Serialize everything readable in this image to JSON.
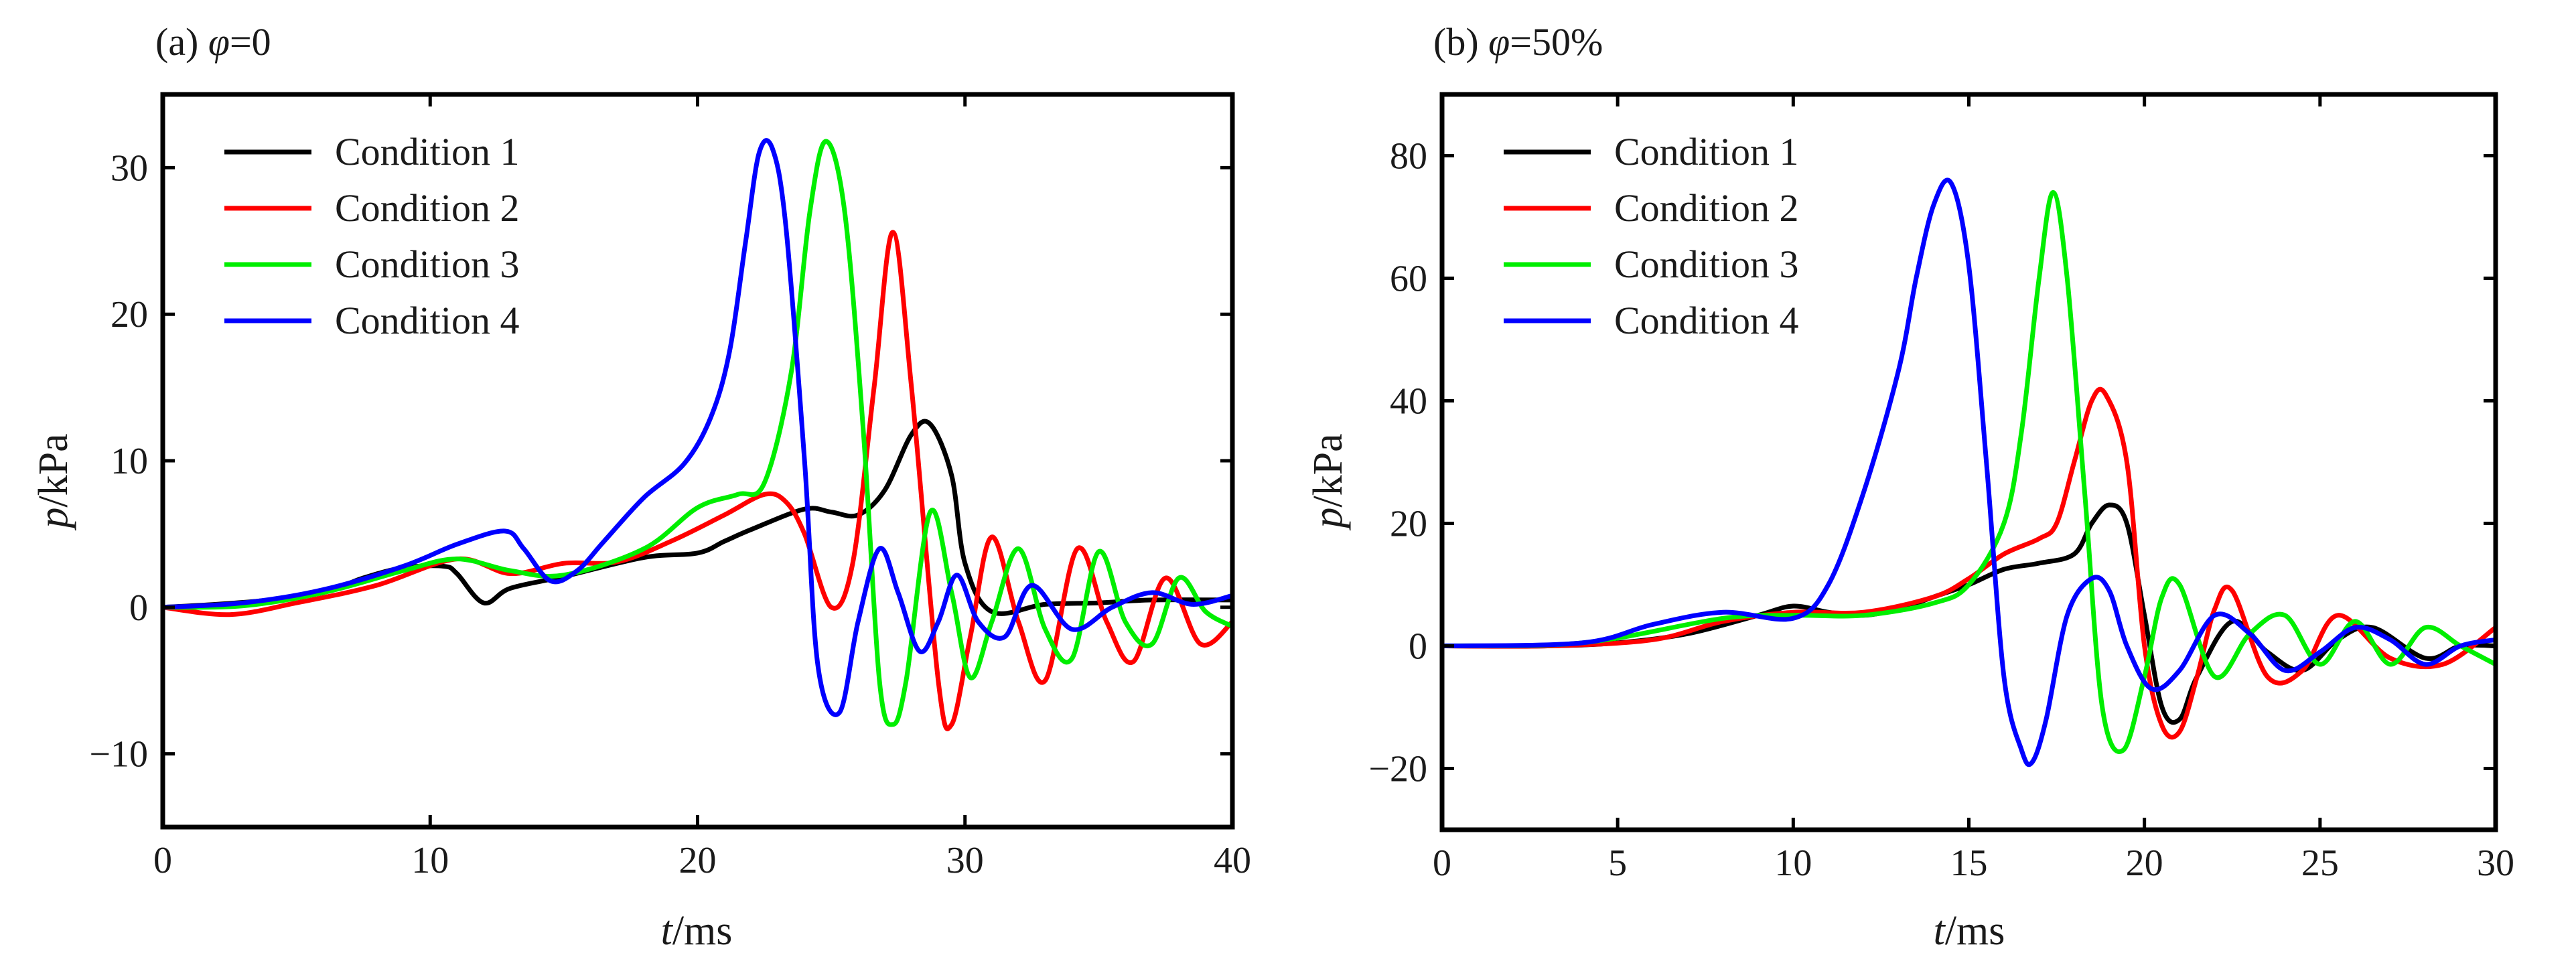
{
  "figure": {
    "panels": [
      {
        "title_prefix": "(a) ",
        "title_symbol": "φ",
        "title_suffix": "=0"
      },
      {
        "title_prefix": "(b) ",
        "title_symbol": "φ",
        "title_suffix": "=50%"
      }
    ]
  },
  "chart_data": [
    {
      "type": "line",
      "title": "(a) φ=0",
      "xlabel_var": "t",
      "xlabel_unit": "/ms",
      "ylabel_var": "p",
      "ylabel_unit": "/kPa",
      "xlim": [
        0,
        40
      ],
      "ylim": [
        -15,
        35
      ],
      "xticks": [
        0,
        10,
        20,
        30,
        40
      ],
      "yticks": [
        -10,
        0,
        10,
        20,
        30
      ],
      "ytick_labels": [
        "−10",
        "0",
        "10",
        "20",
        "30"
      ],
      "grid": false,
      "legend": "top-left",
      "series": [
        {
          "name": "Condition 1",
          "color": "#000000",
          "x": [
            0,
            2,
            4,
            6,
            7.5,
            9,
            10.5,
            11,
            12,
            13,
            15,
            18,
            20,
            21,
            22,
            24,
            25,
            26,
            27,
            28,
            28.7,
            29.5,
            30,
            31,
            33,
            35,
            37,
            40
          ],
          "y": [
            0,
            0.2,
            0.5,
            1,
            2,
            2.7,
            2.8,
            2.3,
            0.3,
            1.3,
            2.1,
            3.4,
            3.7,
            4.5,
            5.3,
            6.7,
            6.5,
            6.3,
            8,
            11.8,
            12.5,
            9,
            3,
            -0.3,
            0.2,
            0.3,
            0.5,
            0.5
          ]
        },
        {
          "name": "Condition 2",
          "color": "#ff0000",
          "x": [
            0,
            2.5,
            5,
            8,
            11,
            13,
            15,
            17,
            19,
            21,
            22.5,
            23.3,
            24,
            25,
            25.8,
            26.6,
            27.3,
            28,
            29,
            29.5,
            30.2,
            31,
            32,
            33,
            34.2,
            35.3,
            36.3,
            37.5,
            38.8,
            40
          ],
          "y": [
            0,
            -0.5,
            0.3,
            1.5,
            3.3,
            2.3,
            3,
            3.1,
            4.5,
            6.3,
            7.7,
            7.2,
            5,
            0,
            3,
            15,
            25.6,
            15,
            -5,
            -8,
            -2,
            4.8,
            -1,
            -5,
            4,
            -1,
            -3.7,
            2,
            -2.5,
            -1
          ]
        },
        {
          "name": "Condition 3",
          "color": "#00ee00",
          "x": [
            0,
            3,
            6,
            9,
            11,
            13,
            15,
            18,
            20,
            21.5,
            22.5,
            23.5,
            24.2,
            24.8,
            25.5,
            26.2,
            26.8,
            27.3,
            27.8,
            28.7,
            29.5,
            30.2,
            31,
            32,
            33,
            34,
            35,
            36,
            37,
            38,
            39,
            40
          ],
          "y": [
            0,
            0.1,
            1,
            2.5,
            3.3,
            2.5,
            2.2,
            4,
            6.8,
            7.7,
            8.5,
            16,
            27,
            31.8,
            27,
            12,
            -5,
            -8,
            -5,
            6.5,
            1,
            -4.8,
            -1,
            4,
            -1.5,
            -3.5,
            3.8,
            -1,
            -2.5,
            2,
            -0.3,
            -1.3
          ]
        },
        {
          "name": "Condition 4",
          "color": "#0000ff",
          "x": [
            0,
            3,
            6,
            9,
            11,
            12.8,
            13.5,
            14.5,
            15.5,
            16.5,
            18,
            19.5,
            20.5,
            21.2,
            21.8,
            22.3,
            22.8,
            23.3,
            24,
            24.5,
            25.3,
            26,
            26.8,
            27.5,
            28.3,
            29,
            29.7,
            30.5,
            31.5,
            32.5,
            34,
            35.5,
            37,
            38.5,
            40
          ],
          "y": [
            0,
            0.3,
            1.2,
            2.8,
            4.3,
            5.2,
            4,
            1.8,
            2.5,
            4.5,
            7.5,
            9.8,
            13,
            17.5,
            25,
            31,
            31.3,
            26,
            10,
            -4,
            -7.2,
            -1,
            4,
            1,
            -3,
            -1,
            2.2,
            -1,
            -2,
            1.5,
            -1.5,
            0,
            1,
            0.2,
            0.8
          ]
        }
      ]
    },
    {
      "type": "line",
      "title": "(b) φ=50%",
      "xlabel_var": "t",
      "xlabel_unit": "/ms",
      "ylabel_var": "p",
      "ylabel_unit": "/kPa",
      "xlim": [
        0,
        30
      ],
      "ylim": [
        -30,
        90
      ],
      "xticks": [
        0,
        5,
        10,
        15,
        20,
        25,
        30
      ],
      "yticks": [
        -20,
        0,
        20,
        40,
        60,
        80
      ],
      "ytick_labels": [
        "−20",
        "0",
        "20",
        "40",
        "60",
        "80"
      ],
      "grid": false,
      "legend": "top-left",
      "series": [
        {
          "name": "Condition 1",
          "color": "#000000",
          "x": [
            0,
            3,
            5,
            7,
            9,
            10,
            11,
            12,
            13,
            14,
            15,
            16,
            17,
            18,
            18.5,
            19,
            19.5,
            20,
            20.5,
            21,
            21.5,
            22.5,
            23.5,
            24.5,
            25.5,
            26.5,
            28,
            29,
            30
          ],
          "y": [
            0,
            0,
            0.5,
            2,
            5,
            6.5,
            5.5,
            5,
            6,
            8,
            10,
            12.5,
            13.5,
            15,
            20,
            23,
            20,
            5,
            -10,
            -12,
            -5,
            4,
            -1,
            -4,
            1,
            3,
            -2,
            0,
            0
          ]
        },
        {
          "name": "Condition 2",
          "color": "#ff0000",
          "x": [
            0,
            3,
            6,
            8,
            10,
            12,
            14,
            15,
            16,
            17,
            17.5,
            18,
            18.5,
            18.9,
            19.5,
            20,
            20.5,
            21,
            21.5,
            22,
            22.5,
            23.5,
            24.5,
            25.5,
            27,
            28.5,
            30
          ],
          "y": [
            0,
            0,
            1,
            4,
            5.5,
            5.5,
            8,
            11,
            15,
            17.5,
            20,
            30,
            40,
            41,
            30,
            0,
            -13,
            -14,
            -5,
            6,
            9,
            -5,
            -4,
            5,
            -2,
            -3,
            3
          ]
        },
        {
          "name": "Condition 3",
          "color": "#00ee00",
          "x": [
            0,
            4,
            8,
            10,
            12,
            14,
            15,
            16,
            16.5,
            17,
            17.4,
            17.8,
            18.3,
            18.8,
            19.4,
            20,
            20.5,
            21,
            22,
            23,
            24,
            25,
            26,
            27,
            28,
            29,
            30
          ],
          "y": [
            0,
            0.5,
            4.5,
            5,
            5,
            7,
            10,
            20,
            35,
            60,
            74,
            60,
            25,
            -10,
            -17,
            -5,
            8,
            10,
            -5,
            2,
            5,
            -3,
            4,
            -3,
            3,
            0,
            -3
          ]
        },
        {
          "name": "Condition 4",
          "color": "#0000ff",
          "x": [
            0,
            4,
            6,
            8,
            10,
            11,
            12,
            13,
            13.5,
            14,
            14.5,
            15,
            15.5,
            16,
            16.5,
            16.8,
            17.2,
            17.8,
            18.5,
            19,
            19.5,
            20.2,
            21,
            22,
            23,
            24,
            25,
            26,
            27,
            28,
            29,
            30
          ],
          "y": [
            0,
            0.5,
            3.5,
            5.5,
            4.5,
            10,
            25,
            45,
            60,
            72,
            75.5,
            62,
            30,
            -5,
            -17,
            -19,
            -12,
            5,
            11,
            9,
            0,
            -7,
            -4,
            5,
            2,
            -4,
            -1,
            3,
            1,
            -3,
            0,
            1
          ]
        }
      ]
    }
  ]
}
